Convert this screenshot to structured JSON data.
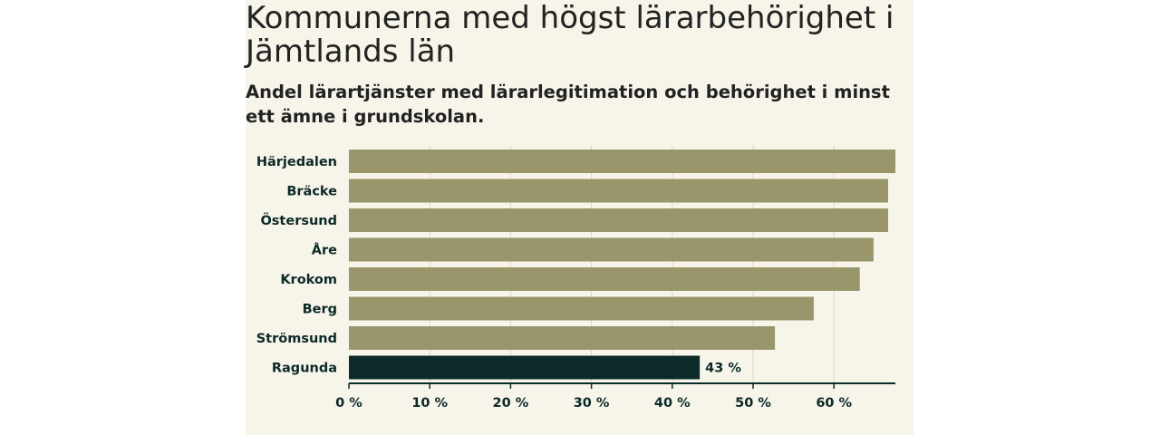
{
  "chart_data": {
    "type": "bar",
    "orientation": "horizontal",
    "title": "Kommunerna med högst lärarbehörighet i Jämtlands län",
    "subtitle": "Andel lärartjänster med lärarlegitimation och behörighet i minst ett ämne i grundskolan.",
    "categories": [
      "Härjedalen",
      "Bräcke",
      "Östersund",
      "Åre",
      "Krokom",
      "Berg",
      "Strömsund",
      "Ragunda"
    ],
    "values": [
      67.6,
      66.7,
      66.7,
      64.9,
      63.2,
      57.5,
      52.7,
      43.4
    ],
    "highlight": "Ragunda",
    "data_labels": {
      "Ragunda": "43 %"
    },
    "xticks": [
      0,
      10,
      20,
      30,
      40,
      50,
      60
    ],
    "tick_suffix": " %",
    "xlim": [
      0,
      67.6
    ],
    "grid": true,
    "xlabel": "",
    "ylabel": "",
    "colors": {
      "bar": "#9a966c",
      "highlight": "#0b2a28",
      "grid": "#dcd8c8",
      "axis": "#0b2a28",
      "text": "#0b2a28",
      "background": "#f7f4ea"
    }
  }
}
